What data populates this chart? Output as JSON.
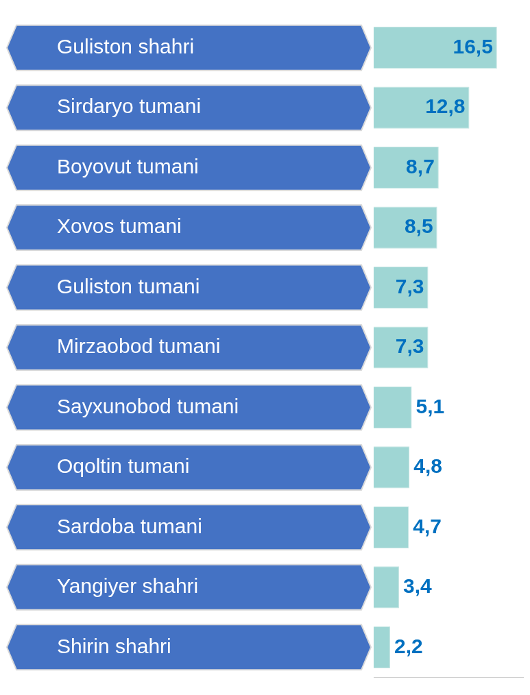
{
  "chart_data": {
    "type": "bar",
    "orientation": "horizontal",
    "categories": [
      "Guliston shahri",
      "Sirdaryo tumani",
      "Boyovut tumani",
      "Xovos tumani",
      "Guliston tumani",
      "Mirzaobod tumani",
      "Sayxunobod tumani",
      "Oqoltin tumani",
      "Sardoba tumani",
      "Yangiyer shahri",
      "Shirin shahri"
    ],
    "values": [
      16.5,
      12.8,
      8.7,
      8.5,
      7.3,
      7.3,
      5.1,
      4.8,
      4.7,
      3.4,
      2.2
    ],
    "value_labels": [
      "16,5",
      "12,8",
      "8,7",
      "8,5",
      "7,3",
      "7,3",
      "5,1",
      "4,8",
      "4,7",
      "3,4",
      "2,2"
    ],
    "color": "#9fd6d4",
    "tick_labels": "y"
  }
}
